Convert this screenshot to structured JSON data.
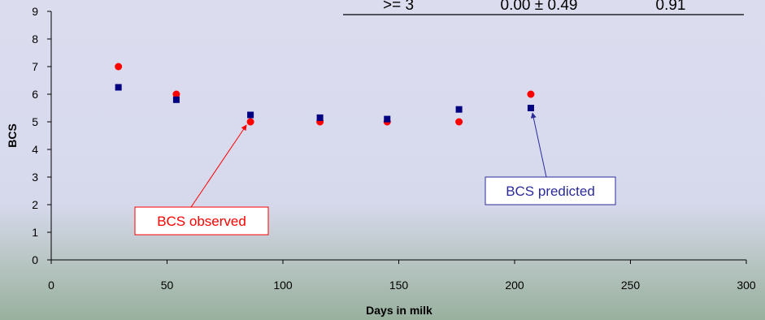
{
  "chart_data": {
    "type": "scatter",
    "xlabel": "Days in milk",
    "ylabel": "BCS",
    "xlim": [
      0,
      300
    ],
    "ylim": [
      0,
      9
    ],
    "x_ticks": [
      "0",
      "50",
      "100",
      "150",
      "200",
      "250",
      "300"
    ],
    "y_ticks": [
      "0",
      "1",
      "2",
      "3",
      "4",
      "5",
      "6",
      "7",
      "8",
      "9"
    ],
    "series": [
      {
        "key": "observed",
        "color": "#ff0000",
        "marker": "circle",
        "points": [
          [
            29,
            7.0
          ],
          [
            54,
            6.0
          ],
          [
            86,
            5.0
          ],
          [
            116,
            5.0
          ],
          [
            145,
            5.0
          ],
          [
            176,
            5.0
          ],
          [
            207,
            6.0
          ]
        ]
      },
      {
        "key": "predicted",
        "color": "#000080",
        "marker": "square",
        "points": [
          [
            29,
            6.25
          ],
          [
            54,
            5.8
          ],
          [
            86,
            5.25
          ],
          [
            116,
            5.15
          ],
          [
            145,
            5.1
          ],
          [
            176,
            5.45
          ],
          [
            207,
            5.5
          ]
        ]
      }
    ],
    "annotations": {
      "observed": {
        "text": "BCS observed",
        "color": "#ff0000"
      },
      "predicted": {
        "text": "BCS predicted",
        "color": "#2b2b9a"
      }
    },
    "table_row": [
      ">= 3",
      "0.00 ± 0.49",
      "0.91"
    ]
  }
}
